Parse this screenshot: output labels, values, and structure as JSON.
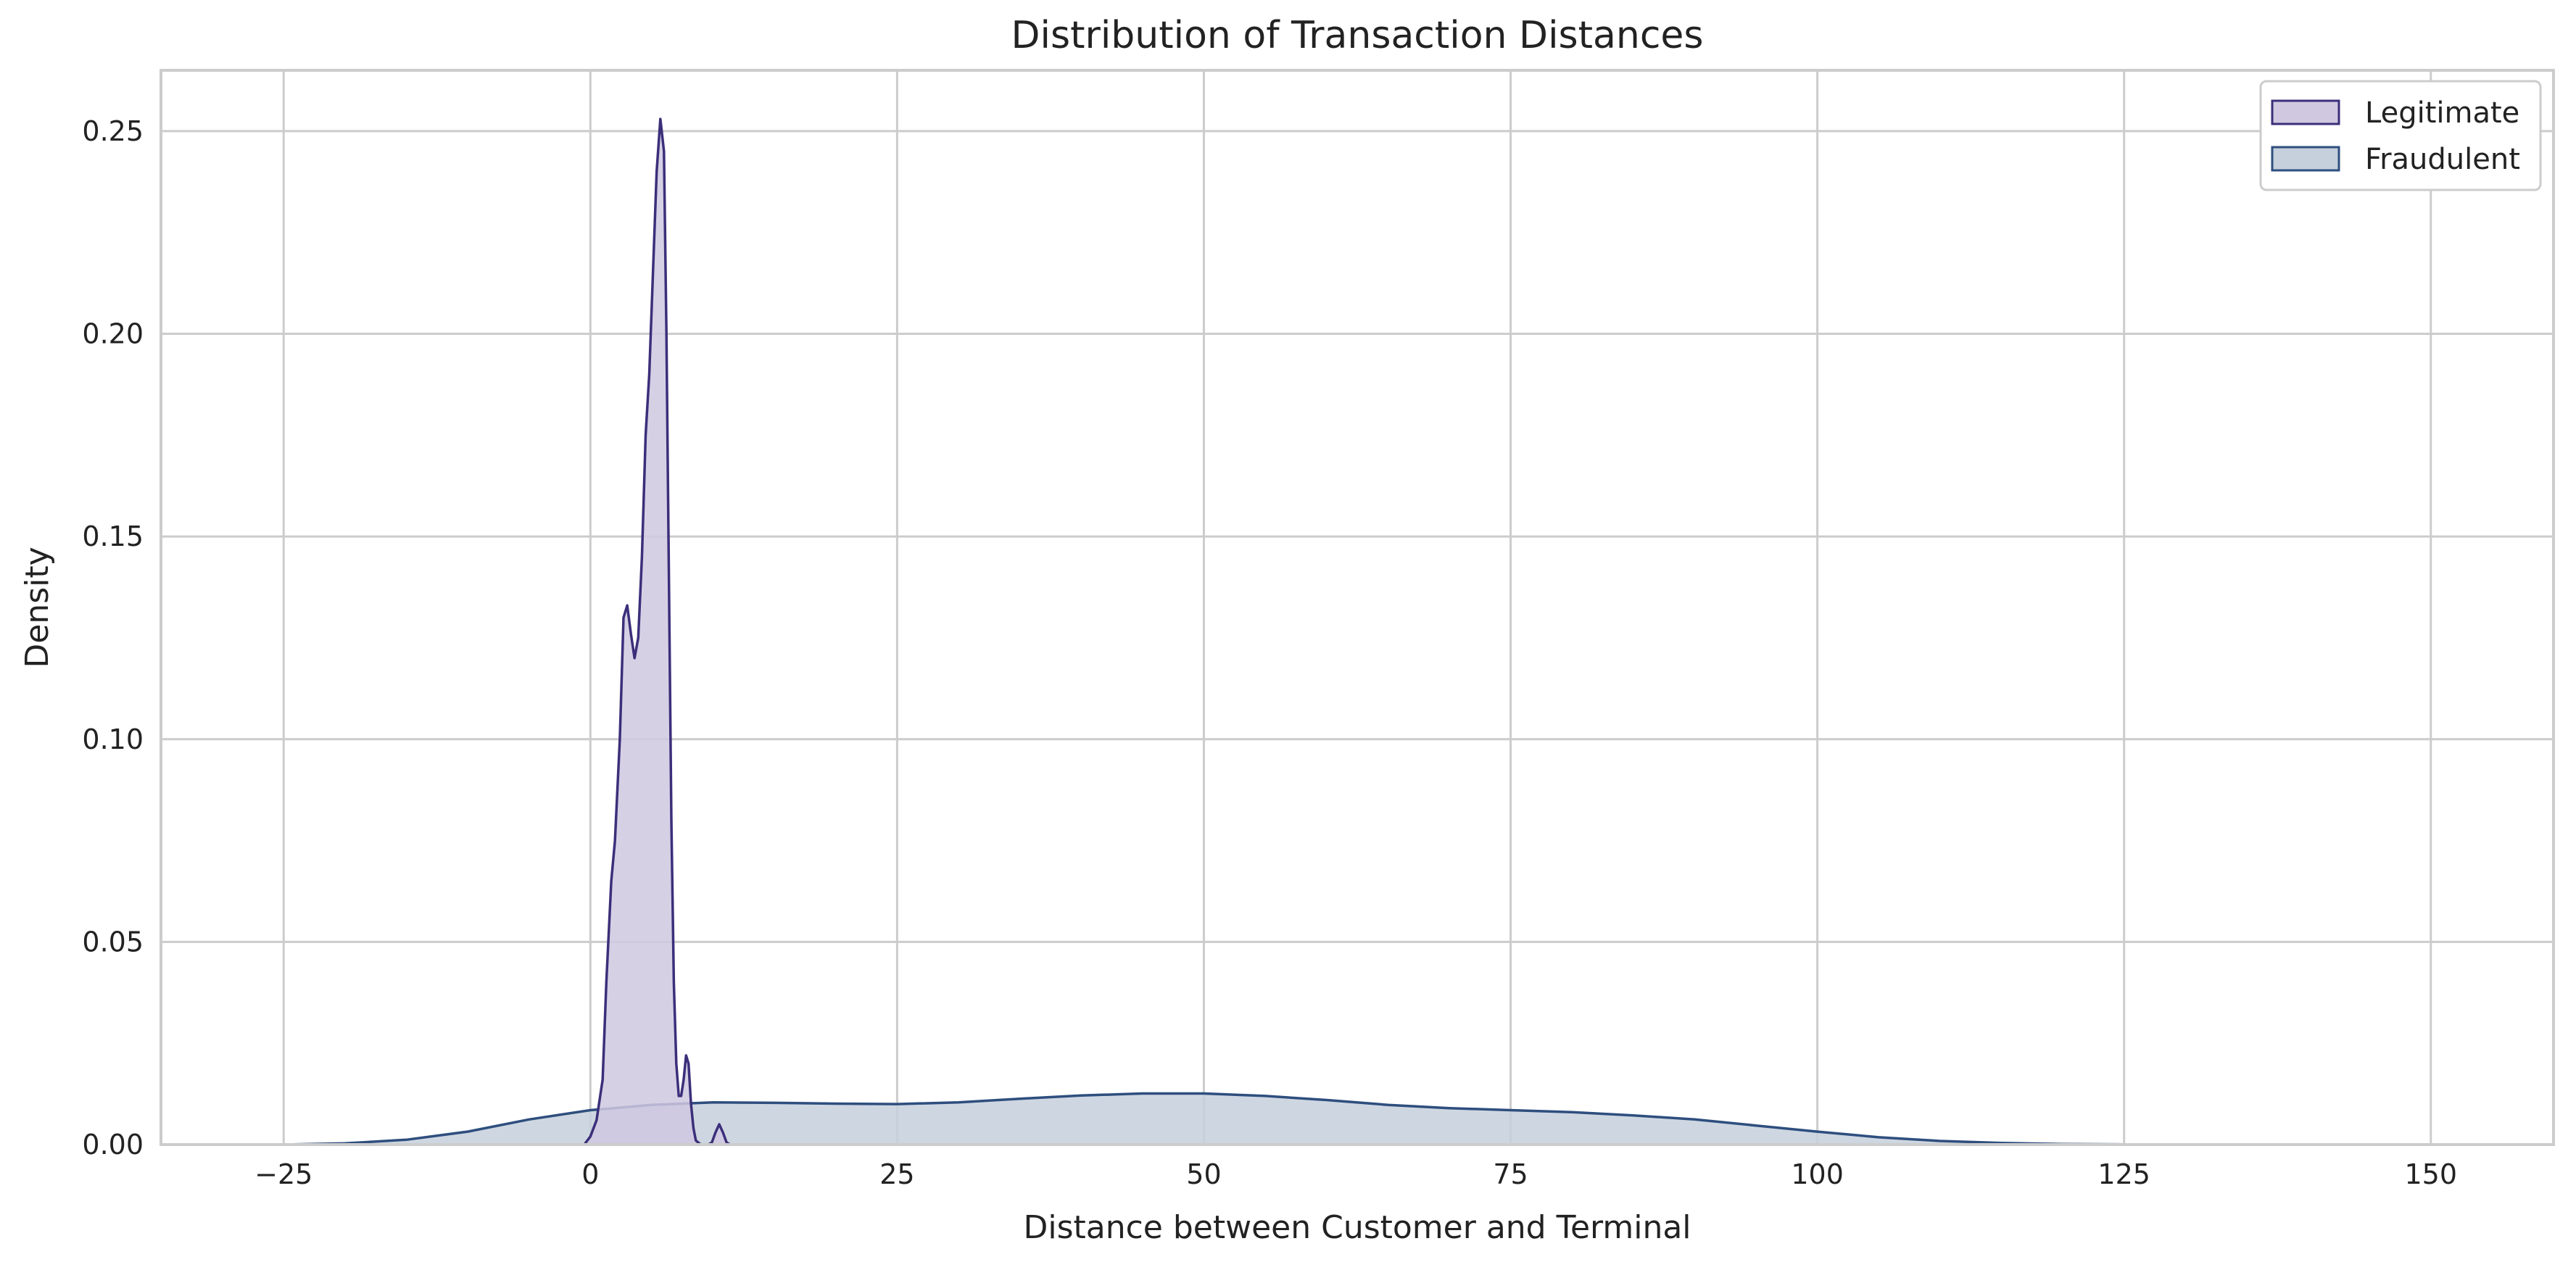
{
  "chart_data": {
    "type": "area",
    "title": "Distribution of Transaction Distances",
    "xlabel": "Distance between Customer and Terminal",
    "ylabel": "Density",
    "xlim": [
      -35,
      160
    ],
    "ylim": [
      0,
      0.265
    ],
    "xticks": [
      -25,
      0,
      25,
      50,
      75,
      100,
      125,
      150
    ],
    "xtick_labels": [
      "−25",
      "0",
      "25",
      "50",
      "75",
      "100",
      "125",
      "150"
    ],
    "yticks": [
      0,
      0.05,
      0.1,
      0.15,
      0.2,
      0.25
    ],
    "ytick_labels": [
      "0.00",
      "0.05",
      "0.10",
      "0.15",
      "0.20",
      "0.25"
    ],
    "grid": true,
    "legend_position": "top-right",
    "series": [
      {
        "name": "Legitimate",
        "stroke": "#3b2f7a",
        "fill": "#cfc8e0",
        "x": [
          -0.5,
          0,
          0.5,
          1,
          1.3,
          1.7,
          2,
          2.4,
          2.7,
          3,
          3.3,
          3.6,
          3.9,
          4.2,
          4.5,
          4.8,
          5.1,
          5.4,
          5.7,
          6,
          6.2,
          6.4,
          6.6,
          6.8,
          7,
          7.2,
          7.4,
          7.6,
          7.8,
          8,
          8.2,
          8.4,
          8.6,
          8.8,
          9,
          9.3,
          9.6,
          9.9,
          10.2,
          10.5,
          10.8,
          11.1,
          11.4,
          11.7,
          12
        ],
        "y": [
          0,
          0.002,
          0.006,
          0.016,
          0.04,
          0.065,
          0.075,
          0.1,
          0.13,
          0.133,
          0.126,
          0.12,
          0.125,
          0.145,
          0.175,
          0.19,
          0.215,
          0.24,
          0.253,
          0.245,
          0.2,
          0.14,
          0.08,
          0.04,
          0.02,
          0.012,
          0.012,
          0.016,
          0.022,
          0.02,
          0.01,
          0.004,
          0.001,
          0.0005,
          0,
          0,
          0,
          0.0005,
          0.003,
          0.005,
          0.003,
          0.0005,
          0,
          0,
          0
        ]
      },
      {
        "name": "Fraudulent",
        "stroke": "#2e4e7e",
        "fill": "#c5d0dc",
        "x": [
          -25,
          -20,
          -15,
          -10,
          -5,
          0,
          5,
          10,
          15,
          20,
          25,
          30,
          35,
          40,
          45,
          50,
          55,
          60,
          65,
          70,
          75,
          80,
          85,
          90,
          95,
          100,
          105,
          110,
          115,
          120,
          125,
          130,
          135,
          140
        ],
        "y": [
          0,
          0.0003,
          0.0012,
          0.0032,
          0.0062,
          0.0085,
          0.0098,
          0.0104,
          0.0103,
          0.0101,
          0.01,
          0.0104,
          0.0113,
          0.0121,
          0.0126,
          0.0126,
          0.012,
          0.011,
          0.0098,
          0.009,
          0.0085,
          0.008,
          0.0072,
          0.0062,
          0.0047,
          0.0032,
          0.0018,
          0.0009,
          0.0004,
          0.00015,
          5e-05,
          2e-05,
          1e-05,
          0
        ]
      }
    ]
  }
}
